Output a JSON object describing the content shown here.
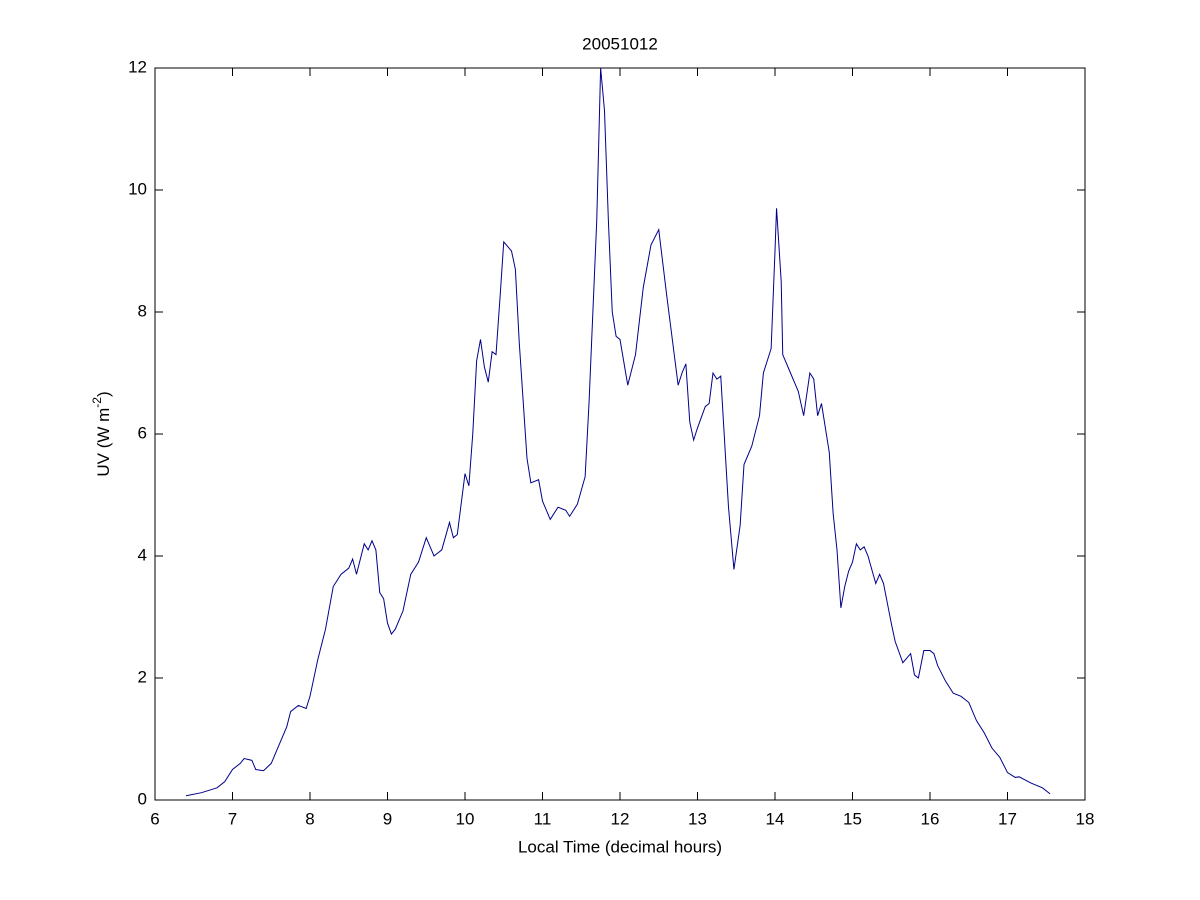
{
  "chart_data": {
    "type": "line",
    "title": "20051012",
    "xlabel": "Local Time (decimal hours)",
    "ylabel_parts": [
      "UV (W m",
      "-2",
      ")"
    ],
    "xlim": [
      6,
      18
    ],
    "xticks": [
      6,
      7,
      8,
      9,
      10,
      11,
      12,
      13,
      14,
      15,
      16,
      17,
      18
    ],
    "ylim": [
      0,
      12
    ],
    "yticks": [
      0,
      2,
      4,
      6,
      8,
      10,
      12
    ],
    "grid": false,
    "series": [
      {
        "color": "#00008b",
        "x": [
          6.4,
          6.6,
          6.8,
          6.9,
          7.0,
          7.1,
          7.15,
          7.25,
          7.3,
          7.4,
          7.5,
          7.6,
          7.7,
          7.75,
          7.85,
          7.95,
          8.0,
          8.1,
          8.2,
          8.3,
          8.4,
          8.5,
          8.55,
          8.6,
          8.7,
          8.75,
          8.8,
          8.85,
          8.9,
          8.95,
          9.0,
          9.05,
          9.1,
          9.2,
          9.3,
          9.4,
          9.5,
          9.6,
          9.7,
          9.8,
          9.85,
          9.9,
          10.0,
          10.05,
          10.1,
          10.15,
          10.2,
          10.25,
          10.3,
          10.35,
          10.4,
          10.45,
          10.5,
          10.6,
          10.65,
          10.7,
          10.8,
          10.85,
          10.95,
          11.0,
          11.1,
          11.2,
          11.3,
          11.35,
          11.45,
          11.55,
          11.6,
          11.7,
          11.75,
          11.8,
          11.85,
          11.9,
          11.95,
          12.0,
          12.1,
          12.2,
          12.3,
          12.4,
          12.5,
          12.6,
          12.65,
          12.75,
          12.8,
          12.85,
          12.9,
          12.95,
          13.0,
          13.1,
          13.15,
          13.2,
          13.25,
          13.3,
          13.4,
          13.47,
          13.55,
          13.6,
          13.7,
          13.8,
          13.85,
          13.95,
          14.0,
          14.02,
          14.08,
          14.1,
          14.2,
          14.3,
          14.37,
          14.45,
          14.5,
          14.55,
          14.6,
          14.7,
          14.75,
          14.8,
          14.85,
          14.9,
          14.95,
          15.0,
          15.05,
          15.1,
          15.15,
          15.2,
          15.3,
          15.35,
          15.4,
          15.5,
          15.55,
          15.65,
          15.75,
          15.8,
          15.85,
          15.92,
          16.0,
          16.05,
          16.1,
          16.2,
          16.3,
          16.4,
          16.5,
          16.6,
          16.7,
          16.8,
          16.9,
          17.0,
          17.1,
          17.15,
          17.3,
          17.45,
          17.55
        ],
        "values": [
          0.07,
          0.12,
          0.2,
          0.3,
          0.5,
          0.6,
          0.68,
          0.65,
          0.5,
          0.48,
          0.6,
          0.9,
          1.2,
          1.45,
          1.55,
          1.5,
          1.7,
          2.3,
          2.8,
          3.5,
          3.7,
          3.8,
          3.95,
          3.7,
          4.2,
          4.1,
          4.25,
          4.1,
          3.4,
          3.3,
          2.9,
          2.72,
          2.8,
          3.1,
          3.7,
          3.9,
          4.3,
          4.0,
          4.1,
          4.55,
          4.3,
          4.35,
          5.35,
          5.15,
          6.0,
          7.2,
          7.55,
          7.1,
          6.85,
          7.35,
          7.3,
          8.2,
          9.15,
          9.0,
          8.7,
          7.5,
          5.6,
          5.2,
          5.25,
          4.9,
          4.6,
          4.8,
          4.75,
          4.65,
          4.85,
          5.3,
          6.5,
          9.5,
          12.0,
          11.3,
          9.5,
          8.0,
          7.6,
          7.55,
          6.8,
          7.3,
          8.4,
          9.1,
          9.35,
          8.3,
          7.8,
          6.8,
          7.0,
          7.15,
          6.2,
          5.9,
          6.1,
          6.45,
          6.5,
          7.0,
          6.9,
          6.95,
          4.8,
          3.78,
          4.5,
          5.5,
          5.8,
          6.3,
          7.0,
          7.4,
          9.0,
          9.7,
          8.5,
          7.3,
          7.0,
          6.7,
          6.3,
          7.0,
          6.9,
          6.3,
          6.5,
          5.7,
          4.7,
          4.1,
          3.15,
          3.5,
          3.75,
          3.9,
          4.2,
          4.1,
          4.15,
          4.0,
          3.55,
          3.7,
          3.55,
          2.9,
          2.6,
          2.25,
          2.4,
          2.05,
          2.0,
          2.45,
          2.45,
          2.4,
          2.2,
          1.95,
          1.75,
          1.7,
          1.6,
          1.3,
          1.1,
          0.85,
          0.7,
          0.45,
          0.37,
          0.38,
          0.28,
          0.2,
          0.1
        ]
      }
    ]
  }
}
